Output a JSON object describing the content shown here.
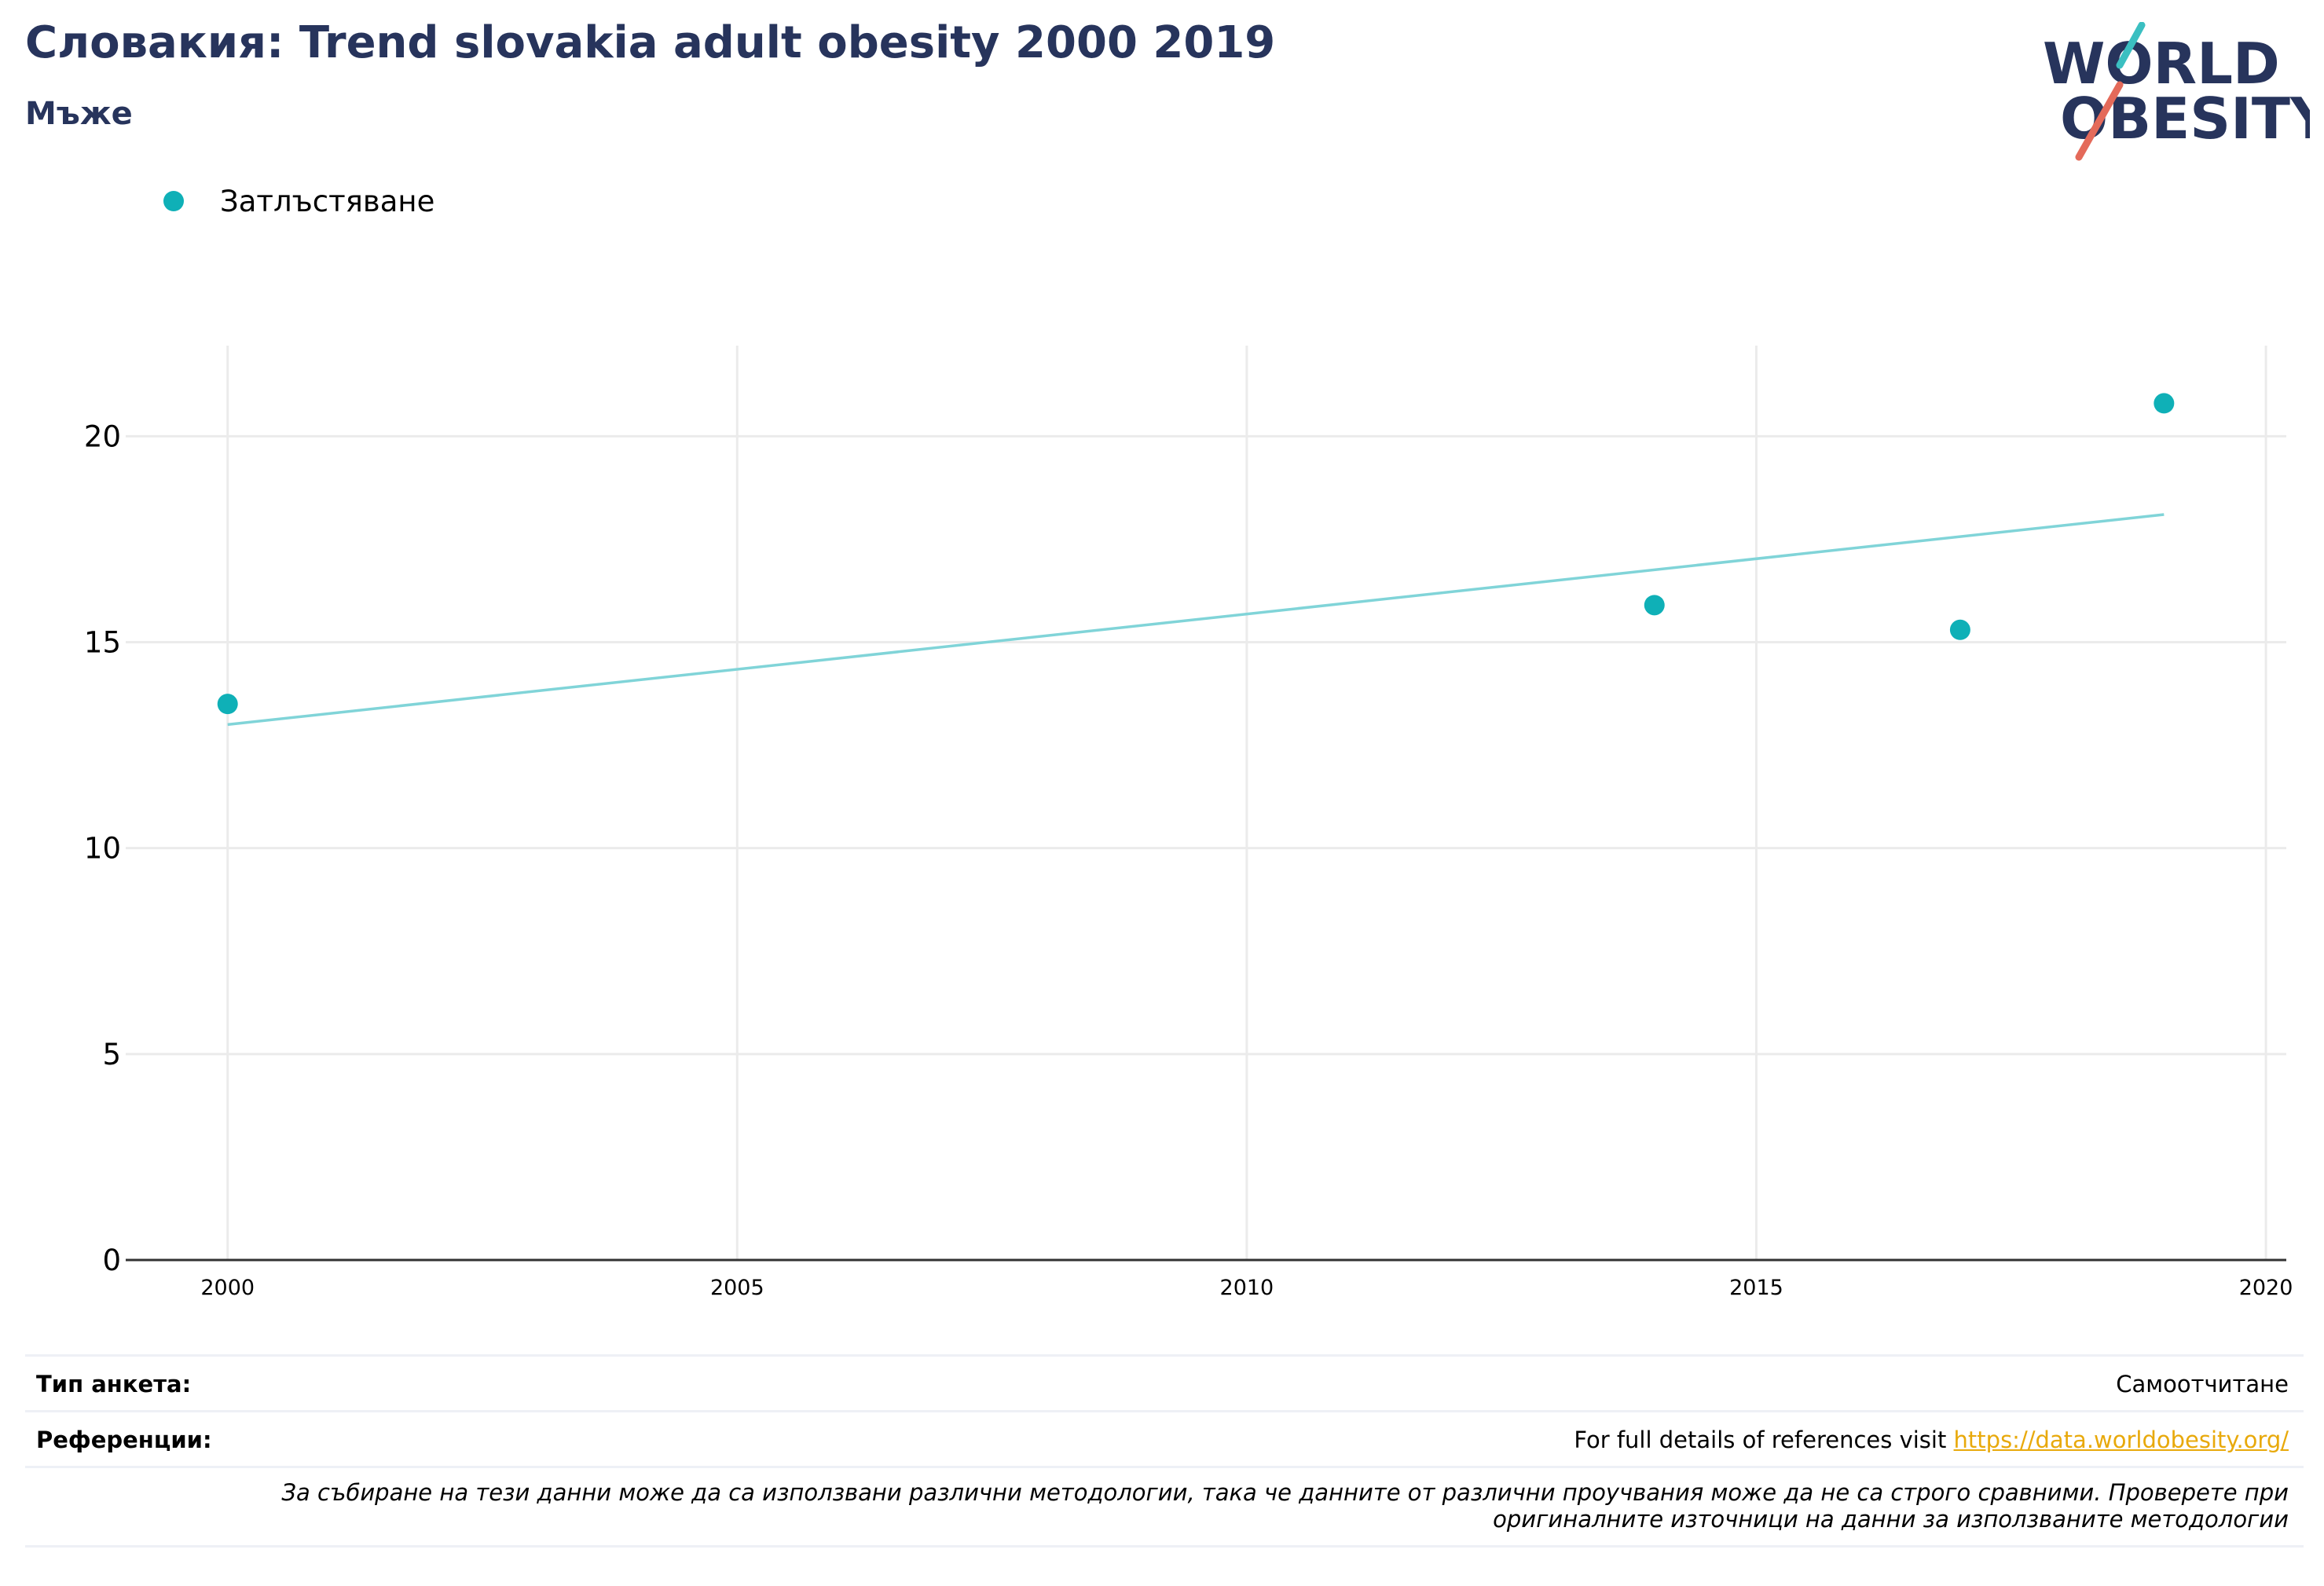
{
  "header": {
    "title": "Словакия: Trend slovakia adult obesity 2000 2019",
    "subtitle": "Мъже"
  },
  "logo": {
    "line1": "WORLD",
    "line2": "OBESITY",
    "text_color": "#27345c",
    "slash_top_color": "#3bbfc1",
    "slash_bottom_color": "#e46a5a"
  },
  "legend": {
    "items": [
      {
        "label": "Затлъстяване",
        "color": "#0fb0b7"
      }
    ]
  },
  "chart_data": {
    "type": "scatter",
    "series": [
      {
        "name": "Затлъстяване",
        "x": [
          2000,
          2014,
          2017,
          2019
        ],
        "y": [
          13.5,
          15.9,
          15.3,
          20.8
        ],
        "color": "#0fb0b7"
      }
    ],
    "trendline": {
      "x": [
        2000,
        2019
      ],
      "y": [
        13.0,
        18.1
      ],
      "color": "#80d4d8"
    },
    "xlim": [
      1999,
      2020.2
    ],
    "ylim": [
      0,
      22.2
    ],
    "xticks": [
      2000,
      2005,
      2010,
      2015,
      2020
    ],
    "yticks": [
      0,
      5,
      10,
      15,
      20
    ],
    "grid": true,
    "xlabel": "",
    "ylabel": "",
    "legend_position": "top-left"
  },
  "footer": {
    "survey_label": "Тип анкета:",
    "survey_value": "Самоотчитане",
    "refs_label": "Референции:",
    "refs_text": "For full details of references visit ",
    "refs_link": "https://data.worldobesity.org/",
    "note_line1": "За събиране на тези данни може да са използвани различни методологии, така че данните от различни проучвания може да не са строго сравними. Проверете при",
    "note_line2": "оригиналните източници на данни за използваните методологии"
  }
}
